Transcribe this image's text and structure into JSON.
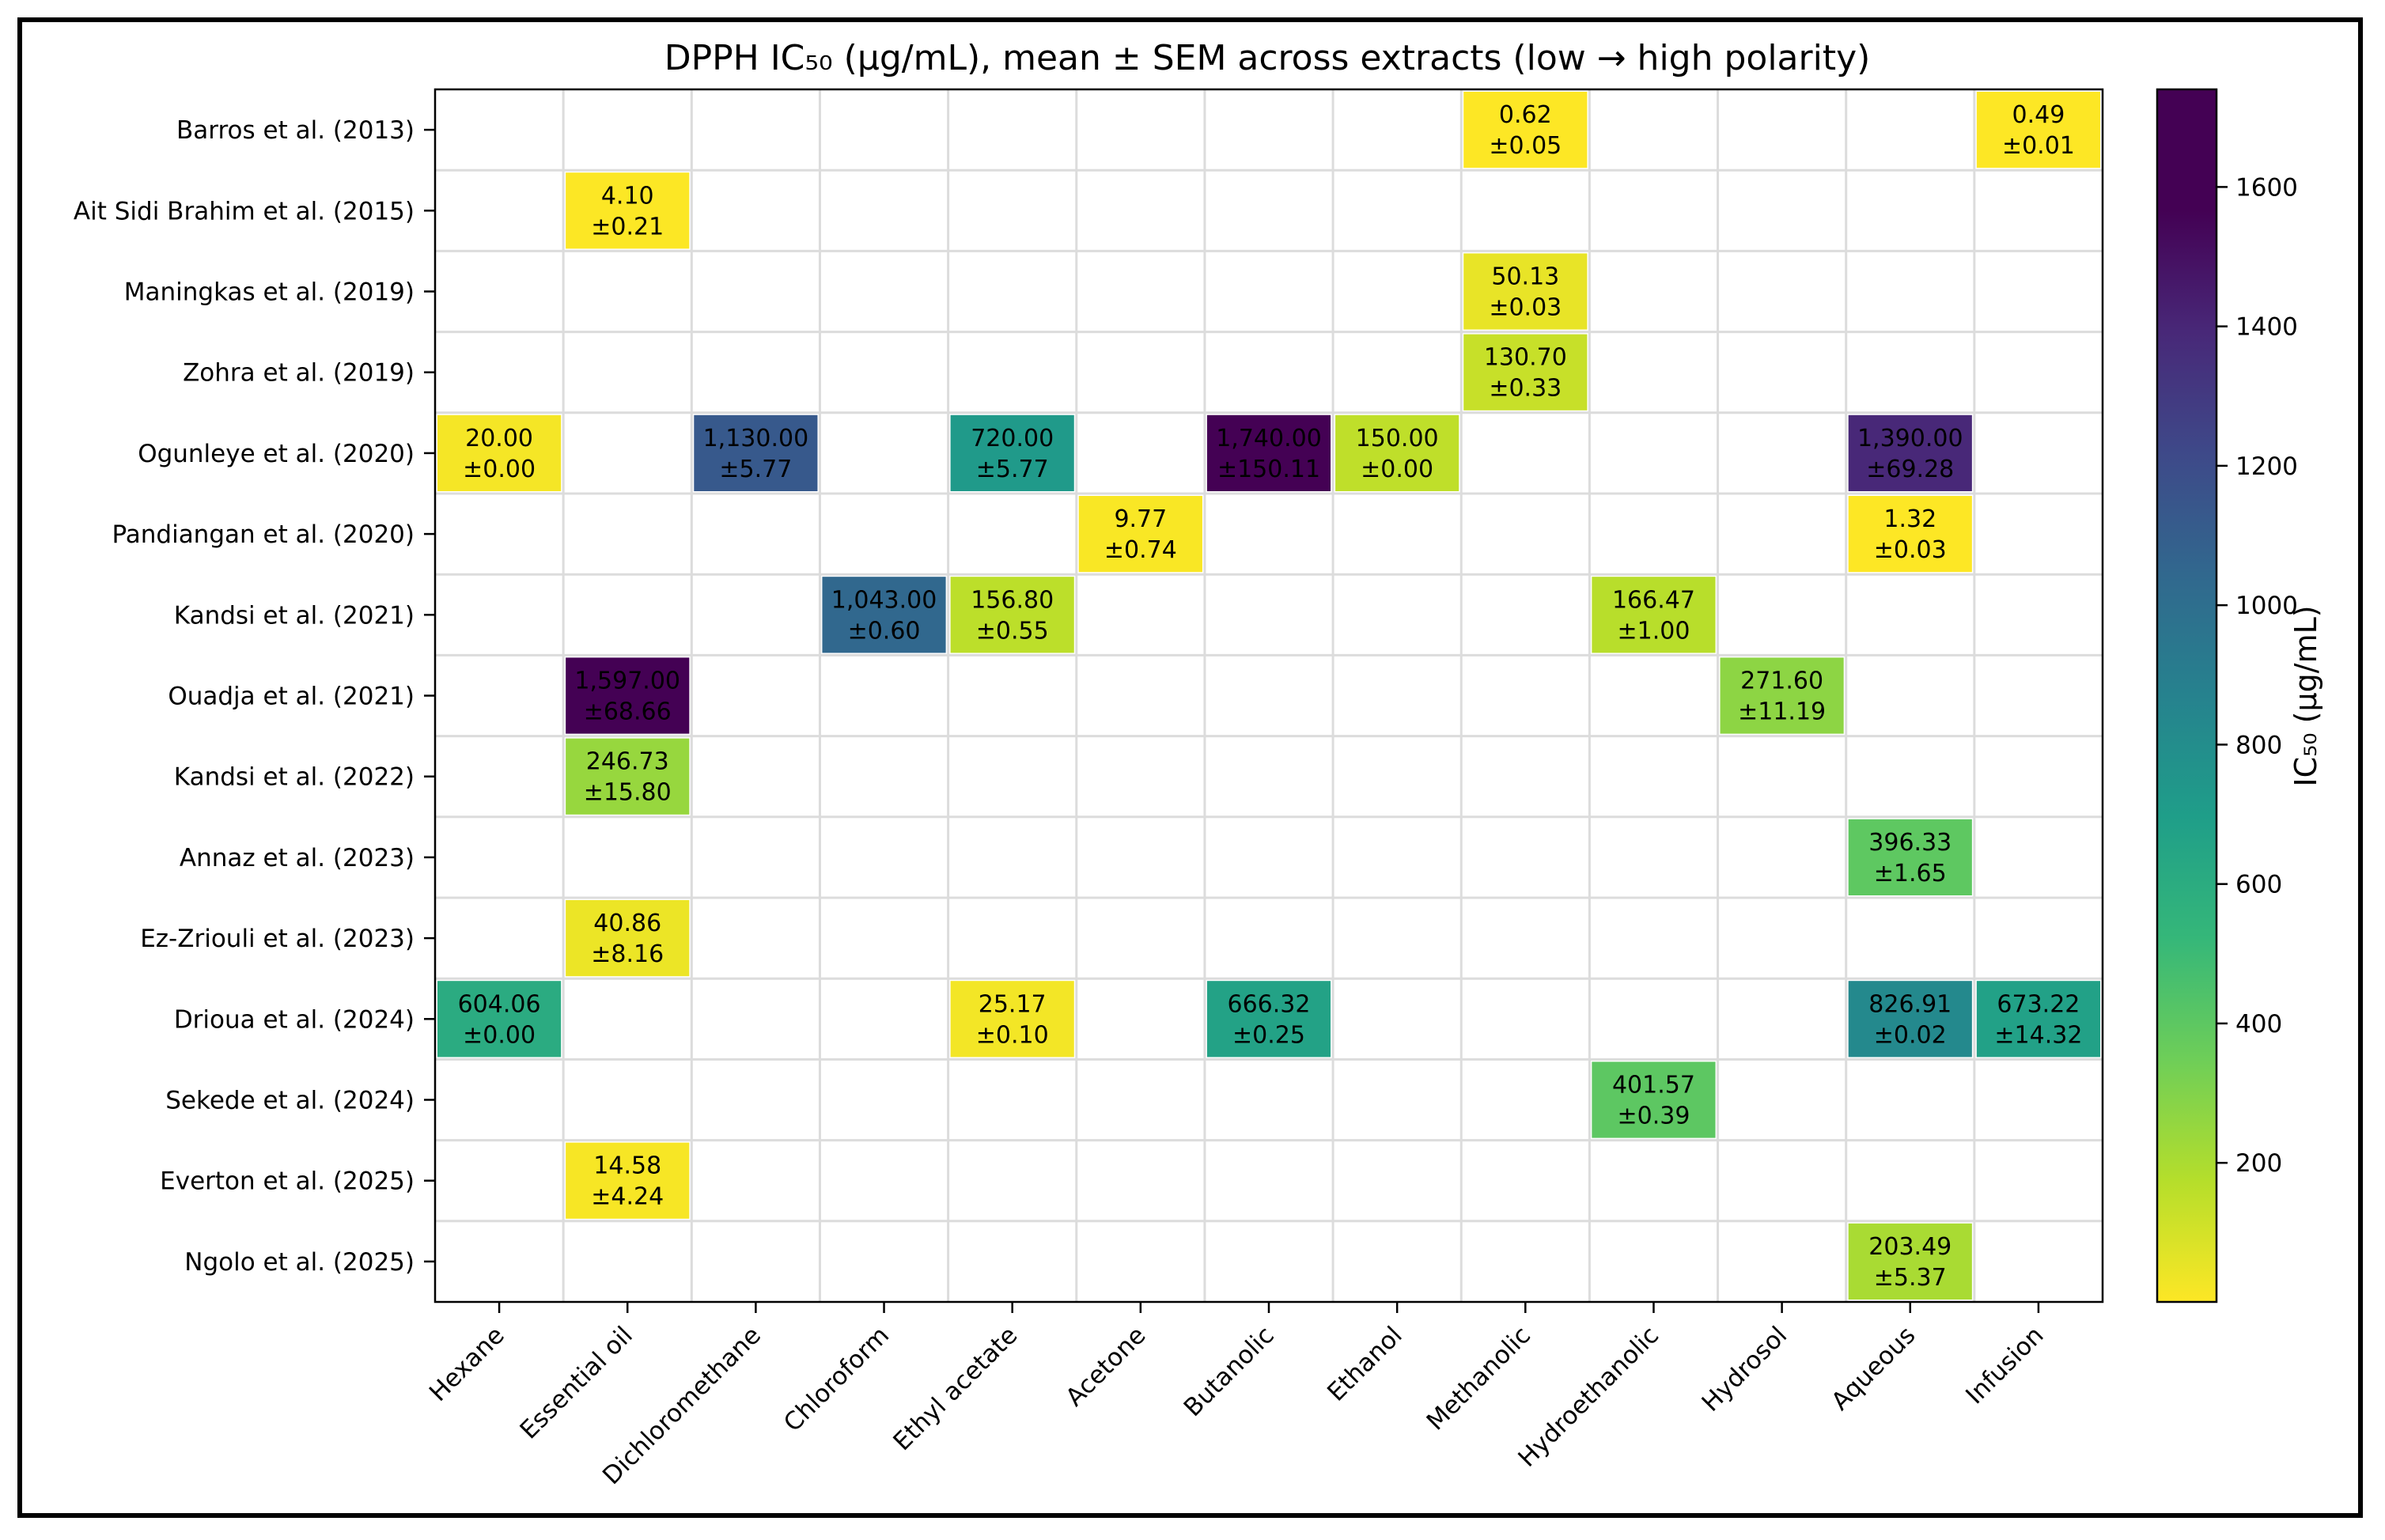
{
  "chart_data": {
    "type": "heatmap",
    "title": "DPPH IC₅₀ (µg/mL), mean ± SEM across extracts (low → high polarity)",
    "columns": [
      "Hexane",
      "Essential oil",
      "Dichloromethane",
      "Chloroform",
      "Ethyl acetate",
      "Acetone",
      "Butanolic",
      "Ethanol",
      "Methanolic",
      "Hydroethanolic",
      "Hydrosol",
      "Aqueous",
      "Infusion"
    ],
    "rows": [
      "Barros et al. (2013)",
      "Ait Sidi Brahim et al. (2015)",
      "Maningkas et al. (2019)",
      "Zohra et al. (2019)",
      "Ogunleye et al. (2020)",
      "Pandiangan et al. (2020)",
      "Kandsi et al. (2021)",
      "Ouadja et al. (2021)",
      "Kandsi et al. (2022)",
      "Annaz et al. (2023)",
      "Ez-Zriouli et al. (2023)",
      "Drioua et al. (2024)",
      "Sekede et al. (2024)",
      "Everton et al. (2025)",
      "Ngolo et al. (2025)"
    ],
    "cells": [
      {
        "row": 0,
        "col": 8,
        "value": 0.62,
        "label": "0.62",
        "sem": "±0.05"
      },
      {
        "row": 0,
        "col": 12,
        "value": 0.49,
        "label": "0.49",
        "sem": "±0.01"
      },
      {
        "row": 1,
        "col": 1,
        "value": 4.1,
        "label": "4.10",
        "sem": "±0.21"
      },
      {
        "row": 2,
        "col": 8,
        "value": 50.13,
        "label": "50.13",
        "sem": "±0.03"
      },
      {
        "row": 3,
        "col": 8,
        "value": 130.7,
        "label": "130.70",
        "sem": "±0.33"
      },
      {
        "row": 4,
        "col": 0,
        "value": 20.0,
        "label": "20.00",
        "sem": "±0.00"
      },
      {
        "row": 4,
        "col": 2,
        "value": 1130.0,
        "label": "1,130.00",
        "sem": "±5.77"
      },
      {
        "row": 4,
        "col": 4,
        "value": 720.0,
        "label": "720.00",
        "sem": "±5.77"
      },
      {
        "row": 4,
        "col": 6,
        "value": 1740.0,
        "label": "1,740.00",
        "sem": "±150.11"
      },
      {
        "row": 4,
        "col": 7,
        "value": 150.0,
        "label": "150.00",
        "sem": "±0.00"
      },
      {
        "row": 4,
        "col": 11,
        "value": 1390.0,
        "label": "1,390.00",
        "sem": "±69.28"
      },
      {
        "row": 5,
        "col": 5,
        "value": 9.77,
        "label": "9.77",
        "sem": "±0.74"
      },
      {
        "row": 5,
        "col": 11,
        "value": 1.32,
        "label": "1.32",
        "sem": "±0.03"
      },
      {
        "row": 6,
        "col": 3,
        "value": 1043.0,
        "label": "1,043.00",
        "sem": "±0.60"
      },
      {
        "row": 6,
        "col": 4,
        "value": 156.8,
        "label": "156.80",
        "sem": "±0.55"
      },
      {
        "row": 6,
        "col": 9,
        "value": 166.47,
        "label": "166.47",
        "sem": "±1.00"
      },
      {
        "row": 7,
        "col": 1,
        "value": 1597.0,
        "label": "1,597.00",
        "sem": "±68.66"
      },
      {
        "row": 7,
        "col": 10,
        "value": 271.6,
        "label": "271.60",
        "sem": "±11.19"
      },
      {
        "row": 8,
        "col": 1,
        "value": 246.73,
        "label": "246.73",
        "sem": "±15.80"
      },
      {
        "row": 9,
        "col": 11,
        "value": 396.33,
        "label": "396.33",
        "sem": "±1.65"
      },
      {
        "row": 10,
        "col": 1,
        "value": 40.86,
        "label": "40.86",
        "sem": "±8.16"
      },
      {
        "row": 11,
        "col": 0,
        "value": 604.06,
        "label": "604.06",
        "sem": "±0.00"
      },
      {
        "row": 11,
        "col": 4,
        "value": 25.17,
        "label": "25.17",
        "sem": "±0.10"
      },
      {
        "row": 11,
        "col": 6,
        "value": 666.32,
        "label": "666.32",
        "sem": "±0.25"
      },
      {
        "row": 11,
        "col": 11,
        "value": 826.91,
        "label": "826.91",
        "sem": "±0.02"
      },
      {
        "row": 11,
        "col": 12,
        "value": 673.22,
        "label": "673.22",
        "sem": "±14.32"
      },
      {
        "row": 12,
        "col": 9,
        "value": 401.57,
        "label": "401.57",
        "sem": "±0.39"
      },
      {
        "row": 13,
        "col": 1,
        "value": 14.58,
        "label": "14.58",
        "sem": "±4.24"
      },
      {
        "row": 14,
        "col": 11,
        "value": 203.49,
        "label": "203.49",
        "sem": "±5.37"
      }
    ],
    "colorbar": {
      "label": "IC₅₀ (µg/mL)",
      "range": [
        0.49,
        1740
      ],
      "ticks": [
        200,
        400,
        600,
        800,
        1000,
        1200,
        1400,
        1600
      ],
      "colormap": "viridis_r"
    },
    "grid": true
  }
}
